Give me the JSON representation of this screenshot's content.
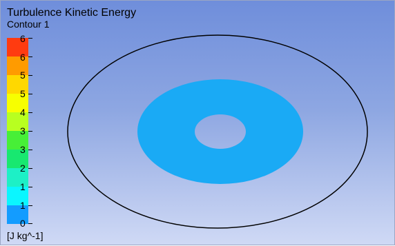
{
  "plot": {
    "title": "Turbulence Kinetic Energy",
    "subtitle": "Contour 1",
    "units": "[J kg^-1]"
  },
  "legend": {
    "labels": [
      "6",
      "6",
      "5",
      "5",
      "4",
      "3",
      "3",
      "2",
      "1",
      "1",
      "0"
    ],
    "colors": [
      "#ff3b10",
      "#ff9b00",
      "#ffd800",
      "#f7ff00",
      "#b8ff20",
      "#47ef37",
      "#18e870",
      "#1df0c6",
      "#0bf6ff",
      "#139cff",
      "#1357ff"
    ]
  },
  "contour": {
    "band_color": "#1aaaf5",
    "outline_color": "#000000"
  }
}
